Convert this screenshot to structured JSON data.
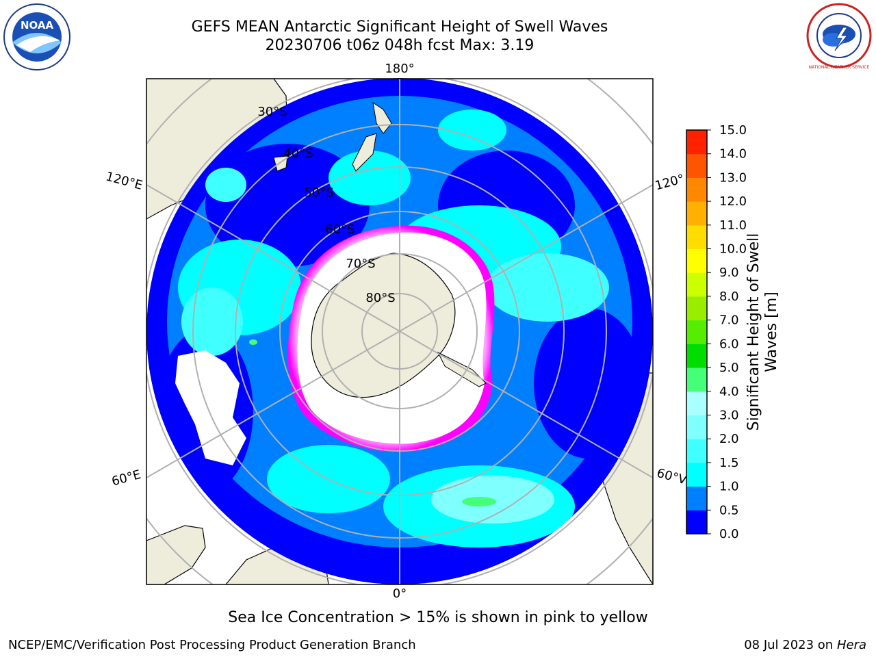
{
  "header": {
    "title_line1": "GEFS MEAN Antarctic Significant Height of Swell Waves",
    "title_line2": "20230706 t06z 048h fcst   Max: 3.19"
  },
  "logos": {
    "left": {
      "icon": "noaa-logo-icon",
      "text": "NOAA"
    },
    "right": {
      "icon": "nws-logo-icon",
      "text": "NATIONAL WEATHER SERVICE"
    }
  },
  "map": {
    "longitude_labels": {
      "top": "180°",
      "bottom": "0°",
      "left_upper": "120°E",
      "left_lower": "60°E",
      "right_upper": "120°",
      "right_lower": "60°V"
    },
    "latitude_labels": [
      "30°S",
      "40°S",
      "50°S",
      "60°S",
      "70°S",
      "80°S"
    ],
    "colors": {
      "land": "#eeeddc",
      "ocean_low": "#0000ff",
      "ocean_mid": "#0080ff",
      "ice": "#ffffff",
      "ice_edge": "#ff00ff",
      "grid": "#b0b0b0"
    }
  },
  "colorbar": {
    "label_line1": "Significant Height of Swell",
    "label_line2": "Waves [m]",
    "ticks": [
      "0.0",
      "0.5",
      "1.0",
      "1.5",
      "2.0",
      "3.0",
      "4.0",
      "5.0",
      "6.0",
      "7.0",
      "8.0",
      "9.0",
      "10.0",
      "11.0",
      "12.0",
      "13.0",
      "14.0",
      "15.0"
    ],
    "colors": [
      "#0000ff",
      "#0080ff",
      "#00ffff",
      "#40ffff",
      "#80ffff",
      "#aaffff",
      "#44ff77",
      "#00dd00",
      "#55ee00",
      "#99ee00",
      "#ccff00",
      "#ffff00",
      "#ffdd00",
      "#ffb000",
      "#ff8800",
      "#ff5500",
      "#ff2200",
      "#ff0000"
    ]
  },
  "caption": "Sea Ice Concentration > 15% is shown in pink to yellow",
  "footer": {
    "left": "NCEP/EMC/Verification Post Processing Product Generation Branch",
    "right_date": "08 Jul 2023 on ",
    "right_host": "Hera"
  }
}
